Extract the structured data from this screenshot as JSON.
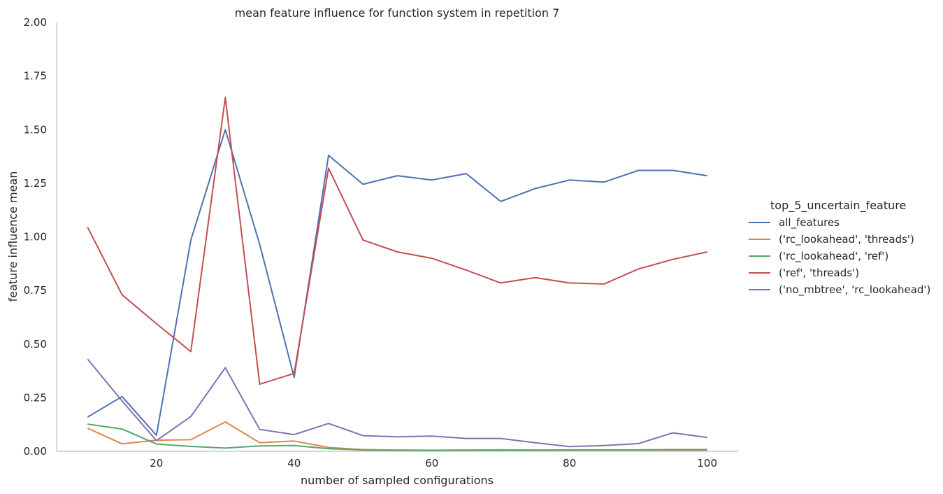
{
  "chart_data": {
    "type": "line",
    "title": "mean feature influence for function system in repetition 7",
    "xlabel": "number of sampled configurations",
    "ylabel": "feature influence mean",
    "xlim": [
      5.5,
      104.5
    ],
    "ylim": [
      0,
      2.0
    ],
    "xticks": [
      20,
      40,
      60,
      80,
      100
    ],
    "yticks": [
      "0.00",
      "0.25",
      "0.50",
      "0.75",
      "1.00",
      "1.25",
      "1.50",
      "1.75",
      "2.00"
    ],
    "grid": false,
    "legend_title": "top_5_uncertain_feature",
    "legend_position": "right",
    "x": [
      10,
      15,
      20,
      25,
      30,
      35,
      40,
      45,
      50,
      55,
      60,
      65,
      70,
      75,
      80,
      85,
      90,
      95,
      100
    ],
    "series": [
      {
        "name": "all_features",
        "color": "#4c72b0",
        "values": [
          0.16,
          0.255,
          0.075,
          0.985,
          1.5,
          0.965,
          0.345,
          1.38,
          1.245,
          1.285,
          1.265,
          1.295,
          1.165,
          1.225,
          1.265,
          1.255,
          1.31,
          1.31,
          1.285
        ]
      },
      {
        "name": "('rc_lookahead', 'threads')",
        "color": "#dd8452",
        "values": [
          0.108,
          0.035,
          0.052,
          0.054,
          0.137,
          0.04,
          0.048,
          0.018,
          0.008,
          0.006,
          0.005,
          0.006,
          0.007,
          0.006,
          0.006,
          0.006,
          0.006,
          0.006,
          0.006
        ]
      },
      {
        "name": "('rc_lookahead', 'ref')",
        "color": "#55a868",
        "values": [
          0.127,
          0.104,
          0.034,
          0.023,
          0.015,
          0.025,
          0.027,
          0.012,
          0.006,
          0.006,
          0.005,
          0.006,
          0.006,
          0.006,
          0.007,
          0.007,
          0.007,
          0.008,
          0.008
        ]
      },
      {
        "name": "('ref', 'threads')",
        "color": "#c44e52",
        "values": [
          1.045,
          0.73,
          0.595,
          0.465,
          1.65,
          0.313,
          0.363,
          1.32,
          0.985,
          0.93,
          0.9,
          0.845,
          0.785,
          0.81,
          0.785,
          0.78,
          0.85,
          0.895,
          0.93
        ]
      },
      {
        "name": "('no_mbtree', 'rc_lookahead')",
        "color": "#8172b3",
        "values": [
          0.43,
          0.235,
          0.05,
          0.162,
          0.39,
          0.102,
          0.078,
          0.13,
          0.073,
          0.068,
          0.071,
          0.06,
          0.06,
          0.04,
          0.022,
          0.027,
          0.036,
          0.086,
          0.065
        ]
      }
    ]
  }
}
